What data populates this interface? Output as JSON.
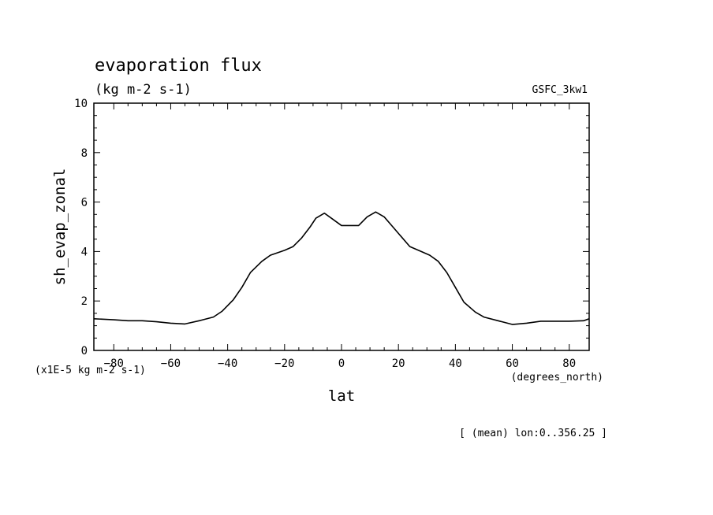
{
  "chart_data": {
    "type": "line",
    "title": "evaporation flux",
    "subtitle": "(kg m-2 s-1)",
    "dataset_label": "GSFC_3kw1",
    "ylabel": "sh_evap_zonal",
    "xlabel": "lat",
    "y_scale_note": "(x1E-5 kg m-2 s-1)",
    "x_unit_note": "(degrees_north)",
    "averaging_note": "[ (mean) lon:0..356.25 ]",
    "xlim": [
      -87,
      87
    ],
    "ylim": [
      0,
      10
    ],
    "x_ticks": [
      -80,
      -60,
      -40,
      -20,
      0,
      20,
      40,
      60,
      80
    ],
    "x_tick_labels": [
      "-80",
      "-60",
      "-40",
      "-20",
      "0",
      "20",
      "40",
      "60",
      "80"
    ],
    "y_ticks": [
      0,
      2,
      4,
      6,
      8,
      10
    ],
    "y_tick_labels": [
      "0",
      "2",
      "4",
      "6",
      "8",
      "10"
    ],
    "grid": false,
    "line_color": "#000000",
    "series": [
      {
        "x": [
          -87,
          -80,
          -75,
          -70,
          -65,
          -60,
          -55,
          -50,
          -45,
          -42,
          -38,
          -35,
          -32,
          -28,
          -25,
          -20,
          -17,
          -14,
          -11,
          -9,
          -6,
          -3,
          0,
          3,
          6,
          9,
          12,
          15,
          18,
          21,
          24,
          28,
          31,
          34,
          37,
          40,
          43,
          47,
          50,
          55,
          60,
          65,
          70,
          75,
          80,
          85,
          87
        ],
        "y": [
          1.28,
          1.24,
          1.2,
          1.2,
          1.16,
          1.1,
          1.07,
          1.2,
          1.35,
          1.58,
          2.05,
          2.55,
          3.15,
          3.6,
          3.85,
          4.05,
          4.2,
          4.55,
          5.0,
          5.35,
          5.55,
          5.3,
          5.05,
          5.05,
          5.05,
          5.4,
          5.6,
          5.4,
          5.0,
          4.6,
          4.2,
          4.0,
          3.85,
          3.6,
          3.15,
          2.55,
          1.95,
          1.55,
          1.35,
          1.2,
          1.05,
          1.1,
          1.18,
          1.18,
          1.18,
          1.2,
          1.28
        ]
      }
    ]
  }
}
